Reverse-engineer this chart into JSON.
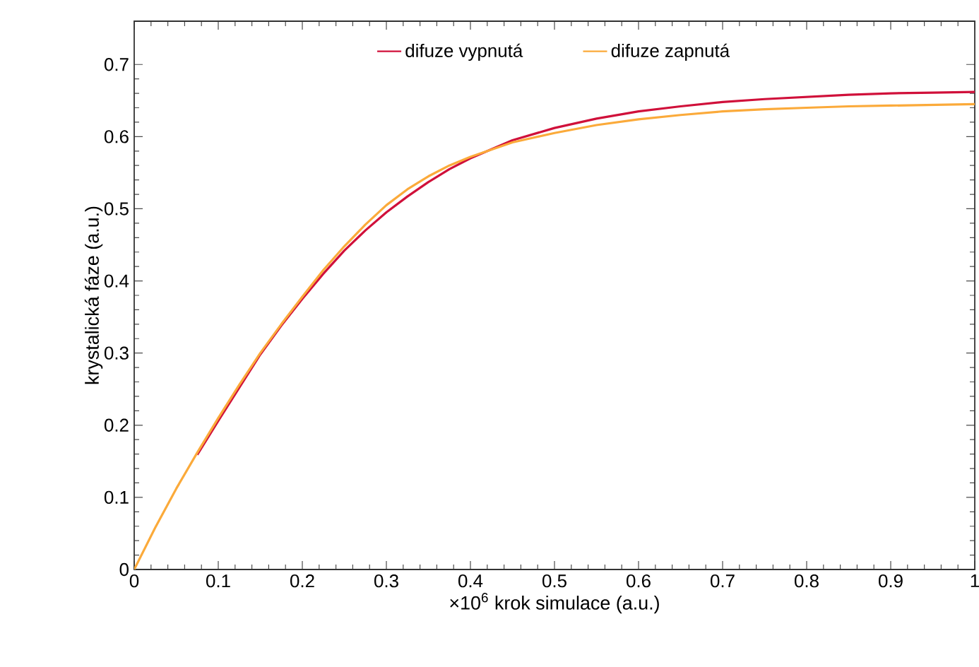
{
  "chart_data": {
    "type": "line",
    "xlabel": "×10$^{6}$ krok simulace (a.u.)",
    "ylabel": "krystalická fáze (a.u.)",
    "xlim": [
      0,
      1
    ],
    "ylim": [
      0,
      0.76
    ],
    "xticks": [
      0,
      0.1,
      0.2,
      0.3,
      0.4,
      0.5,
      0.6,
      0.7,
      0.8,
      0.9,
      1
    ],
    "yticks": [
      0,
      0.1,
      0.2,
      0.3,
      0.4,
      0.5,
      0.6,
      0.7
    ],
    "legend": "top",
    "grid": false,
    "marker": "none",
    "line_style": "solid",
    "series": [
      {
        "name": "difuze vypnutá",
        "color": "#d0103a",
        "x": [
          0.075,
          0.1,
          0.125,
          0.15,
          0.175,
          0.2,
          0.225,
          0.25,
          0.275,
          0.3,
          0.325,
          0.35,
          0.375,
          0.4,
          0.45,
          0.5,
          0.55,
          0.6,
          0.65,
          0.7,
          0.75,
          0.8,
          0.85,
          0.9,
          0.95,
          1
        ],
        "values": [
          0.159,
          0.206,
          0.252,
          0.298,
          0.338,
          0.375,
          0.41,
          0.442,
          0.47,
          0.495,
          0.517,
          0.537,
          0.555,
          0.57,
          0.595,
          0.612,
          0.625,
          0.635,
          0.642,
          0.648,
          0.652,
          0.655,
          0.658,
          0.66,
          0.661,
          0.662
        ]
      },
      {
        "name": "difuze zapnutá",
        "color": "#fbaa3a",
        "x": [
          0,
          0.025,
          0.05,
          0.075,
          0.1,
          0.125,
          0.15,
          0.175,
          0.2,
          0.225,
          0.25,
          0.275,
          0.3,
          0.325,
          0.35,
          0.375,
          0.4,
          0.45,
          0.5,
          0.55,
          0.6,
          0.65,
          0.7,
          0.75,
          0.8,
          0.85,
          0.9,
          0.95,
          1
        ],
        "values": [
          0,
          0.058,
          0.112,
          0.162,
          0.21,
          0.256,
          0.3,
          0.34,
          0.378,
          0.415,
          0.448,
          0.478,
          0.505,
          0.527,
          0.545,
          0.56,
          0.572,
          0.592,
          0.605,
          0.616,
          0.624,
          0.63,
          0.635,
          0.638,
          0.64,
          0.642,
          0.643,
          0.644,
          0.645
        ]
      }
    ]
  }
}
